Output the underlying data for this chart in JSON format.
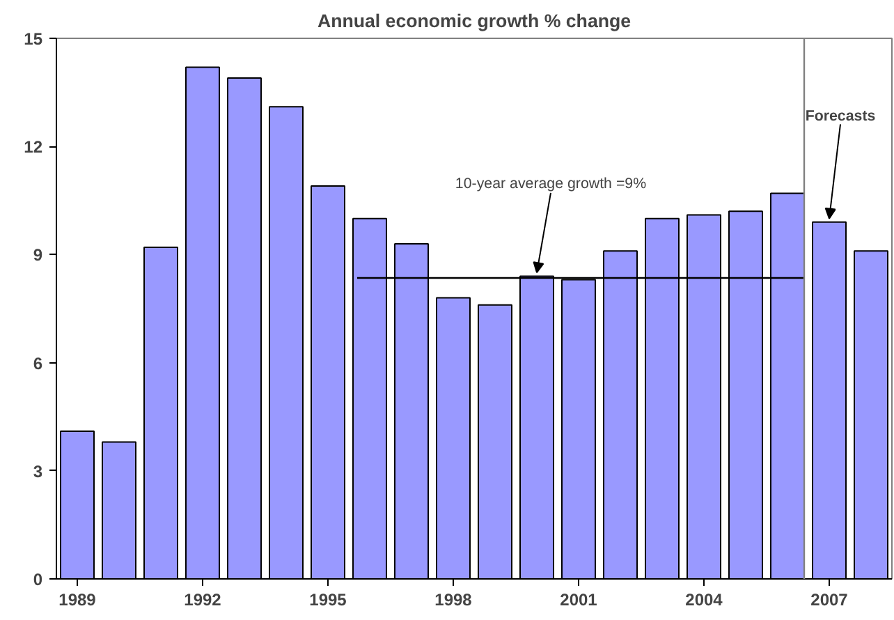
{
  "chart_data": {
    "type": "bar",
    "title": "Annual economic growth % change",
    "x": [
      1989,
      1990,
      1991,
      1992,
      1993,
      1994,
      1995,
      1996,
      1997,
      1998,
      1999,
      2000,
      2001,
      2002,
      2003,
      2004,
      2005,
      2006,
      2007,
      2008
    ],
    "series": [
      {
        "color": "#9999ff",
        "values": [
          4.1,
          3.8,
          9.2,
          14.2,
          13.9,
          13.1,
          10.9,
          10.0,
          9.3,
          7.8,
          7.6,
          8.4,
          8.3,
          9.1,
          10.0,
          10.1,
          10.2,
          10.7,
          9.9,
          9.1
        ]
      },
      {
        "type": "line",
        "color": "#000000",
        "x": [
          1995.7,
          2006.4
        ],
        "values": [
          8.35,
          8.35
        ]
      }
    ],
    "ref_lines": [
      {
        "axis": "x",
        "value": 2006.4,
        "color": "#808080"
      }
    ],
    "xlim": [
      1988.5,
      2008.5
    ],
    "xticks": [
      1989,
      1992,
      1995,
      1998,
      2001,
      2004,
      2007
    ],
    "ylim": [
      0,
      15
    ],
    "yticks": [
      0,
      3,
      6,
      9,
      12,
      15
    ],
    "grid": false,
    "annotations": [
      {
        "text": "10-year average growth =9%",
        "x": 2000,
        "y": 8.4
      },
      {
        "text": "Forecasts",
        "x": 2007,
        "y": 9.9
      }
    ]
  }
}
